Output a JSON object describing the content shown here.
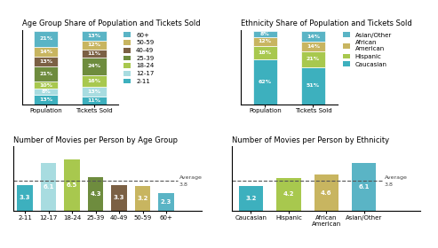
{
  "chart_data": [
    {
      "type": "bar",
      "stacked": true,
      "title": "Age Group Share of Population and Tickets Sold",
      "categories": [
        "Population",
        "Tickets Sold"
      ],
      "series": [
        {
          "name": "2-11",
          "color": "#3db0be",
          "values": [
            13,
            11
          ],
          "value_labels": [
            "13%",
            "11%"
          ]
        },
        {
          "name": "12-17",
          "color": "#a8dce0",
          "values": [
            8,
            13
          ],
          "value_labels": [
            "8%",
            "13%"
          ]
        },
        {
          "name": "18-24",
          "color": "#a8c84e",
          "values": [
            10,
            16
          ],
          "value_labels": [
            "10%",
            "16%"
          ]
        },
        {
          "name": "25-39",
          "color": "#6e8c3e",
          "values": [
            21,
            24
          ],
          "value_labels": [
            "21%",
            "24%"
          ]
        },
        {
          "name": "40-49",
          "color": "#7b6044",
          "values": [
            13,
            11
          ],
          "value_labels": [
            "13%",
            "11%"
          ]
        },
        {
          "name": "50-59",
          "color": "#c8b560",
          "values": [
            14,
            12
          ],
          "value_labels": [
            "14%",
            "12%"
          ]
        },
        {
          "name": "60+",
          "color": "#5ab4c5",
          "values": [
            21,
            13
          ],
          "value_labels": [
            "21%",
            "13%"
          ]
        }
      ],
      "ylim": [
        0,
        102
      ],
      "data_labels": true,
      "tick_labels": "x",
      "legend": "upper left"
    },
    {
      "type": "bar",
      "stacked": true,
      "title": "Ethnicity Share of Population and Tickets Sold",
      "categories": [
        "Population",
        "Tickets Sold"
      ],
      "series": [
        {
          "name": "Caucasian",
          "color": "#3db0be",
          "values": [
            62,
            51
          ],
          "value_labels": [
            "62%",
            "51%"
          ]
        },
        {
          "name": "Hispanic",
          "color": "#a8c84e",
          "values": [
            18,
            21
          ],
          "value_labels": [
            "18%",
            "21%"
          ]
        },
        {
          "name": "African\nAmerican",
          "color": "#c8b560",
          "values": [
            12,
            14
          ],
          "value_labels": [
            "12%",
            "14%"
          ]
        },
        {
          "name": "Asian/Other",
          "color": "#5ab4c5",
          "values": [
            8,
            14
          ],
          "value_labels": [
            "8%",
            "14%"
          ]
        }
      ],
      "ylim": [
        0,
        102
      ],
      "data_labels": true,
      "tick_labels": "x",
      "legend": "upper left"
    },
    {
      "type": "bar",
      "title": "Number of Movies per Person by Age Group",
      "categories": [
        "2-11",
        "12-17",
        "18-24",
        "25-39",
        "40-49",
        "50-59",
        "60+"
      ],
      "values": [
        3.3,
        6.1,
        6.5,
        4.3,
        3.3,
        3.2,
        2.3
      ],
      "colors": [
        "#3db0be",
        "#a8dce0",
        "#a8c84e",
        "#6e8c3e",
        "#7b6044",
        "#c8b560",
        "#5ab4c5"
      ],
      "average": {
        "label": "Average",
        "value": 3.8
      },
      "ylim": [
        0,
        8.2
      ],
      "data_labels": true,
      "tick_labels": "x"
    },
    {
      "type": "bar",
      "title": "Number of Movies per Person by Ethnicity",
      "categories": [
        "Caucasian",
        "Hispanic",
        "African\nAmerican",
        "Asian/Other"
      ],
      "values": [
        3.2,
        4.2,
        4.6,
        6.1
      ],
      "colors": [
        "#3db0be",
        "#a8c84e",
        "#c8b560",
        "#5ab4c5"
      ],
      "average": {
        "label": "Average",
        "value": 3.8
      },
      "ylim": [
        0,
        8.2
      ],
      "data_labels": true,
      "tick_labels": "x"
    }
  ]
}
